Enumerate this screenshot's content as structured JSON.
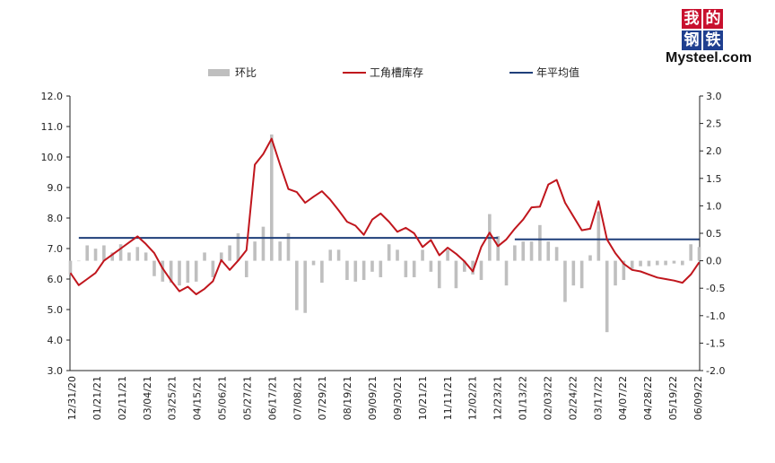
{
  "logo": {
    "chars": [
      "我",
      "的",
      "钢",
      "铁"
    ],
    "text": "Mysteel.com"
  },
  "chart_data": {
    "type": "bar+line",
    "legend": [
      {
        "name": "环比",
        "kind": "bar",
        "color": "#bfbfbf"
      },
      {
        "name": "工角槽库存",
        "kind": "line",
        "color": "#c0161d"
      },
      {
        "name": "年平均值",
        "kind": "line",
        "color": "#1f3f7a"
      }
    ],
    "left_axis": {
      "min": 3.0,
      "max": 12.0,
      "step": 1.0,
      "ticks": [
        "3.0",
        "4.0",
        "5.0",
        "6.0",
        "7.0",
        "8.0",
        "9.0",
        "10.0",
        "11.0",
        "12.0"
      ]
    },
    "right_axis": {
      "min": -2.0,
      "max": 3.0,
      "step": 0.5,
      "ticks": [
        "-2.0",
        "-1.5",
        "-1.0",
        "-0.5",
        "0.0",
        "0.5",
        "1.0",
        "1.5",
        "2.0",
        "2.5",
        "3.0"
      ]
    },
    "x_labels": [
      "12/31/20",
      "01/21/21",
      "02/11/21",
      "03/04/21",
      "03/25/21",
      "04/15/21",
      "05/06/21",
      "05/27/21",
      "06/17/21",
      "07/08/21",
      "07/29/21",
      "08/19/21",
      "09/09/21",
      "09/30/21",
      "10/21/21",
      "11/11/21",
      "12/02/21",
      "12/23/21",
      "01/13/22",
      "02/03/22",
      "02/24/22",
      "03/17/22",
      "04/07/22",
      "04/28/22",
      "05/19/22",
      "06/09/22"
    ],
    "inventory": [
      6.2,
      5.8,
      6.0,
      6.2,
      6.6,
      6.8,
      7.0,
      7.2,
      7.4,
      7.15,
      6.85,
      6.35,
      5.95,
      5.6,
      5.75,
      5.5,
      5.68,
      5.93,
      6.62,
      6.3,
      6.6,
      6.95,
      9.75,
      10.1,
      10.6,
      9.75,
      8.95,
      8.85,
      8.5,
      8.7,
      8.88,
      8.6,
      8.25,
      7.88,
      7.75,
      7.45,
      7.95,
      8.15,
      7.88,
      7.55,
      7.68,
      7.5,
      7.05,
      7.28,
      6.78,
      7.03,
      6.83,
      6.58,
      6.25,
      7.05,
      7.52,
      7.08,
      7.3,
      7.65,
      7.95,
      8.35,
      8.37,
      9.1,
      9.25,
      8.5,
      8.05,
      7.6,
      7.65,
      8.55,
      7.3,
      6.85,
      6.5,
      6.3,
      6.25,
      6.15,
      6.05,
      6.0,
      5.95,
      5.88,
      6.15,
      6.55
    ],
    "wow_change": [
      -0.25,
      0.0,
      0.28,
      0.22,
      0.28,
      0.15,
      0.3,
      0.15,
      0.25,
      0.15,
      -0.28,
      -0.38,
      -0.4,
      -0.45,
      -0.4,
      -0.38,
      0.15,
      -0.3,
      0.15,
      0.28,
      0.5,
      -0.3,
      0.35,
      0.62,
      2.3,
      0.35,
      0.5,
      -0.9,
      -0.95,
      -0.08,
      -0.4,
      0.2,
      0.2,
      -0.35,
      -0.38,
      -0.35,
      -0.2,
      -0.3,
      0.3,
      0.2,
      -0.3,
      -0.3,
      0.2,
      -0.2,
      -0.5,
      0.2,
      -0.5,
      -0.2,
      -0.25,
      -0.35,
      0.85,
      0.45,
      -0.45,
      0.28,
      0.35,
      0.35,
      0.65,
      0.35,
      0.25,
      -0.75,
      -0.45,
      -0.5,
      0.1,
      0.9,
      -1.3,
      -0.45,
      -0.35,
      -0.15,
      -0.1,
      -0.1,
      -0.08,
      -0.08,
      -0.05,
      -0.08,
      0.3,
      0.25
    ],
    "annual_average": [
      {
        "label": "2021",
        "value": 7.35,
        "start_index": 1,
        "end_index": 51
      },
      {
        "label": "2022",
        "value": 7.3,
        "start_index": 53,
        "end_index": 75
      }
    ]
  }
}
